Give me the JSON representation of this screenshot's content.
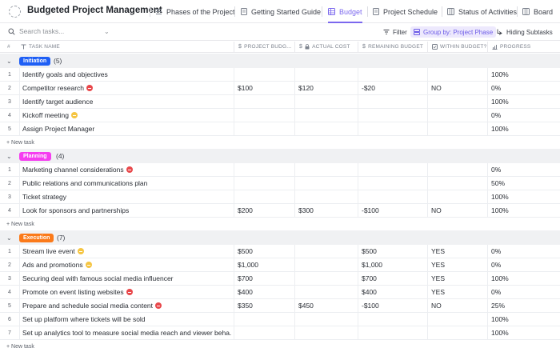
{
  "header": {
    "project_title": "Budgeted Project Management",
    "tabs": [
      {
        "label": "Phases of the Project",
        "icon": "list-icon"
      },
      {
        "label": "Getting Started Guide",
        "icon": "doc-icon"
      },
      {
        "label": "Budget",
        "icon": "table-icon",
        "active": true
      },
      {
        "label": "Project Schedule",
        "icon": "doc-icon"
      },
      {
        "label": "Status of Activities",
        "icon": "board-icon"
      },
      {
        "label": "Board",
        "icon": "board-icon"
      }
    ]
  },
  "toolbar": {
    "search_placeholder": "Search tasks...",
    "filter_label": "Filter",
    "group_label": "Group by: Project Phase",
    "hiding_label": "Hiding Subtasks"
  },
  "columns": {
    "num": "#",
    "task_name": "TASK NAME",
    "project_budget": "PROJECT BUDG...",
    "actual_cost": "ACTUAL COST",
    "remaining_budget": "REMAINING BUDGET",
    "within_budget": "WITHIN BUDGET?",
    "progress": "PROGRESS"
  },
  "new_task_label": "+ New task",
  "accent_color": "#7b68ee",
  "groups": [
    {
      "name": "Initiation",
      "count": "(5)",
      "bg": "#1f5ff5",
      "fg": "#ffffff",
      "rows": [
        {
          "num": "1",
          "name": "Identify goals and objectives",
          "status": "",
          "budget": "",
          "actual": "",
          "remaining": "",
          "within": "",
          "progress": "100%"
        },
        {
          "num": "2",
          "name": "Competitor research",
          "status": "red",
          "budget": "$100",
          "actual": "$120",
          "remaining": "-$20",
          "within": "NO",
          "progress": "0%"
        },
        {
          "num": "3",
          "name": "Identify target audience",
          "status": "",
          "budget": "",
          "actual": "",
          "remaining": "",
          "within": "",
          "progress": "100%"
        },
        {
          "num": "4",
          "name": "Kickoff meeting",
          "status": "yellow",
          "budget": "",
          "actual": "",
          "remaining": "",
          "within": "",
          "progress": "0%"
        },
        {
          "num": "5",
          "name": "Assign Project Manager",
          "status": "",
          "budget": "",
          "actual": "",
          "remaining": "",
          "within": "",
          "progress": "100%"
        }
      ]
    },
    {
      "name": "Planning",
      "count": "(4)",
      "bg": "#f53df0",
      "fg": "#ffffff",
      "rows": [
        {
          "num": "1",
          "name": "Marketing channel considerations",
          "status": "red",
          "budget": "",
          "actual": "",
          "remaining": "",
          "within": "",
          "progress": "0%"
        },
        {
          "num": "2",
          "name": "Public relations and communications plan",
          "status": "",
          "budget": "",
          "actual": "",
          "remaining": "",
          "within": "",
          "progress": "50%"
        },
        {
          "num": "3",
          "name": "Ticket strategy",
          "status": "",
          "budget": "",
          "actual": "",
          "remaining": "",
          "within": "",
          "progress": "100%"
        },
        {
          "num": "4",
          "name": "Look for sponsors and partnerships",
          "status": "",
          "budget": "$200",
          "actual": "$300",
          "remaining": "-$100",
          "within": "NO",
          "progress": "100%"
        }
      ]
    },
    {
      "name": "Execution",
      "count": "(7)",
      "bg": "#fb7a1a",
      "fg": "#ffffff",
      "rows": [
        {
          "num": "1",
          "name": "Stream live event",
          "status": "yellow",
          "budget": "$500",
          "actual": "",
          "remaining": "$500",
          "within": "YES",
          "progress": "0%"
        },
        {
          "num": "2",
          "name": "Ads and promotions",
          "status": "yellow",
          "budget": "$1,000",
          "actual": "",
          "remaining": "$1,000",
          "within": "YES",
          "progress": "0%"
        },
        {
          "num": "3",
          "name": "Securing deal with famous social media influencer",
          "status": "",
          "budget": "$700",
          "actual": "",
          "remaining": "$700",
          "within": "YES",
          "progress": "100%"
        },
        {
          "num": "4",
          "name": "Promote on event listing websites",
          "status": "red",
          "budget": "$400",
          "actual": "",
          "remaining": "$400",
          "within": "YES",
          "progress": "0%"
        },
        {
          "num": "5",
          "name": "Prepare and schedule social media content",
          "status": "red",
          "budget": "$350",
          "actual": "$450",
          "remaining": "-$100",
          "within": "NO",
          "progress": "25%"
        },
        {
          "num": "6",
          "name": "Set up platform where tickets will be sold",
          "status": "",
          "budget": "",
          "actual": "",
          "remaining": "",
          "within": "",
          "progress": "100%"
        },
        {
          "num": "7",
          "name": "Set up analytics tool to measure social media reach and viewer beha...",
          "status": "",
          "budget": "",
          "actual": "",
          "remaining": "",
          "within": "",
          "progress": "100%"
        }
      ]
    }
  ]
}
